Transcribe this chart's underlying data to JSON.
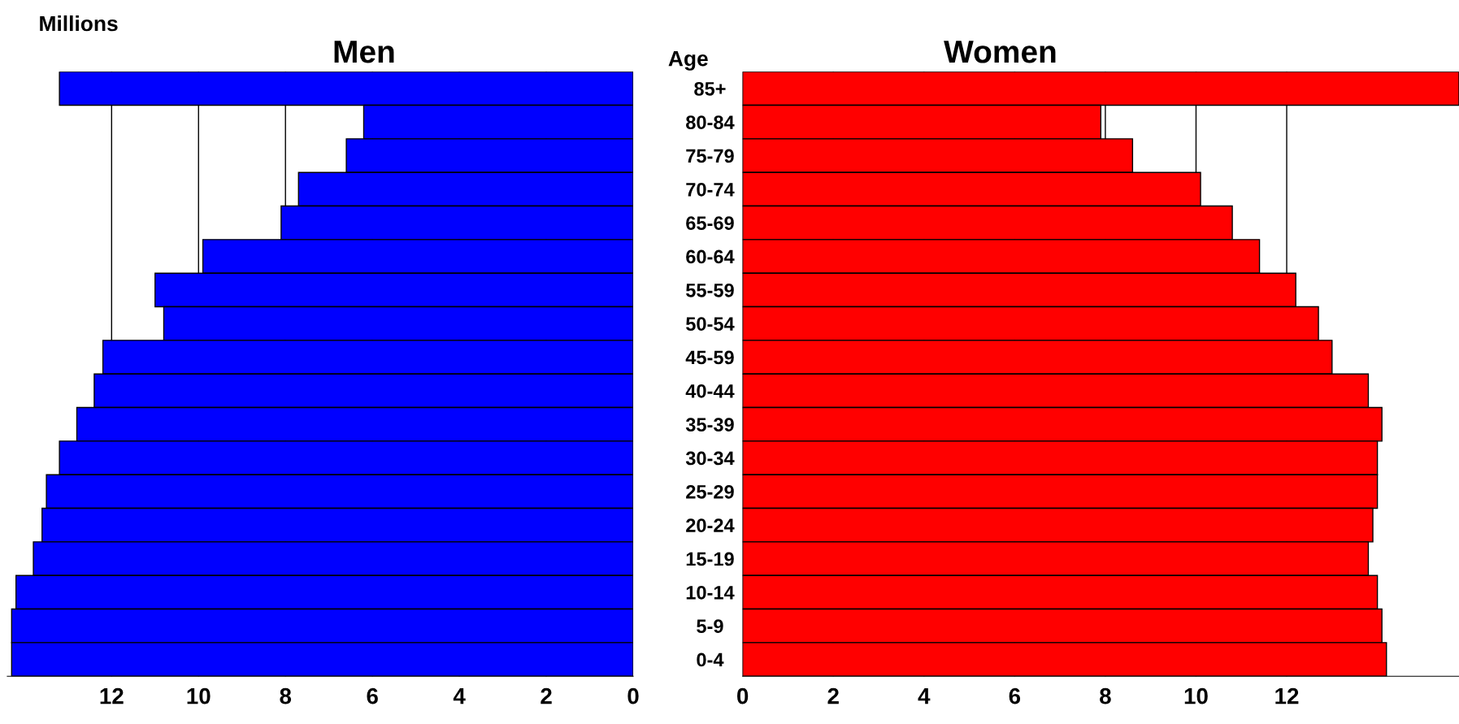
{
  "chart_data": [
    {
      "type": "bar",
      "orientation": "horizontal",
      "title": "Men",
      "ylabel": "Age",
      "annotations": [
        "Millions"
      ],
      "categories": [
        "85+",
        "80-84",
        "75-79",
        "70-74",
        "65-69",
        "60-64",
        "55-59",
        "50-54",
        "45-59",
        "40-44",
        "35-39",
        "30-34",
        "25-29",
        "20-24",
        "15-19",
        "10-14",
        "5-9",
        "0-4"
      ],
      "values": [
        13.2,
        6.2,
        6.6,
        7.7,
        8.1,
        9.9,
        11.0,
        10.8,
        12.2,
        12.4,
        12.8,
        13.2,
        13.5,
        13.6,
        13.8,
        14.2,
        14.3,
        14.3
      ],
      "color": "#0000ff",
      "xlim": [
        14.4,
        0
      ],
      "xticks": [
        12,
        10,
        8,
        6,
        4,
        2,
        0
      ],
      "grid": "x"
    },
    {
      "type": "bar",
      "orientation": "horizontal",
      "title": "Women",
      "tick_labels": "x",
      "values": [
        15.8,
        7.9,
        8.6,
        10.1,
        10.8,
        11.4,
        12.2,
        12.7,
        13.0,
        13.8,
        14.1,
        14.0,
        14.0,
        13.9,
        13.8,
        14.0,
        14.1,
        14.2
      ],
      "color": "#ff0000",
      "xlim": [
        0,
        15.8
      ],
      "xticks": [
        0,
        2,
        4,
        6,
        8,
        10,
        12
      ],
      "grid": "x"
    }
  ]
}
